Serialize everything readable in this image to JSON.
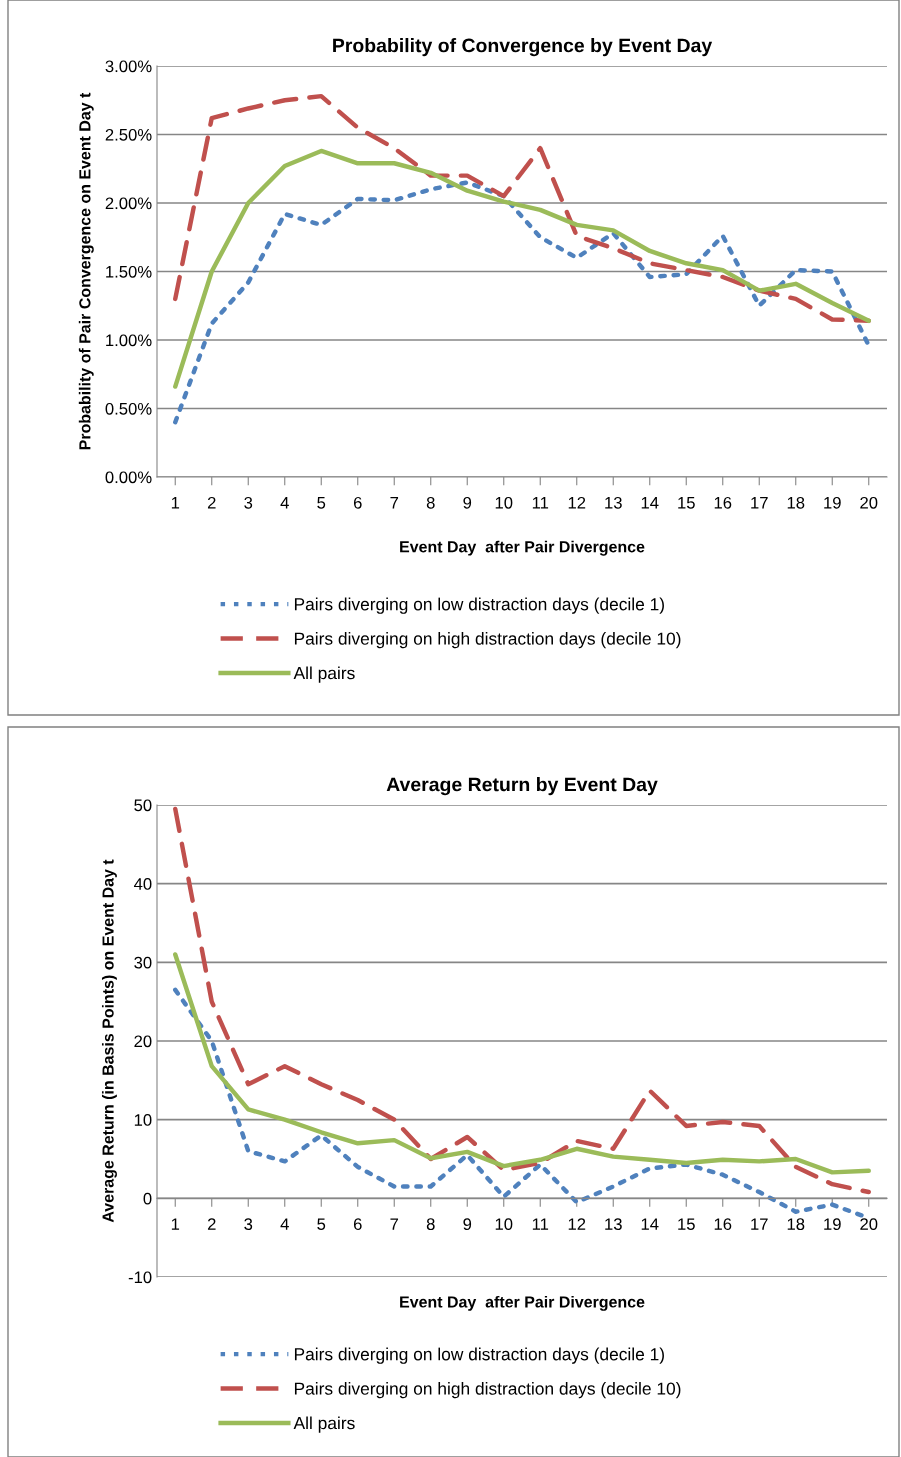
{
  "chart_data": [
    {
      "type": "line",
      "title": "Probability of Convergence by Event Day",
      "xlabel": "Event Day  after Pair Divergence",
      "ylabel": "Probability of Pair Convergence on Event Day t",
      "categories": [
        "1",
        "2",
        "3",
        "4",
        "5",
        "6",
        "7",
        "8",
        "9",
        "10",
        "11",
        "12",
        "13",
        "14",
        "15",
        "16",
        "17",
        "18",
        "19",
        "20"
      ],
      "ylim": [
        0,
        3
      ],
      "yticks": [
        {
          "value": 0,
          "label": "0.00%"
        },
        {
          "value": 0.5,
          "label": "0.50%"
        },
        {
          "value": 1,
          "label": "1.00%"
        },
        {
          "value": 1.5,
          "label": "1.50%"
        },
        {
          "value": 2,
          "label": "2.00%"
        },
        {
          "value": 2.5,
          "label": "2.50%"
        },
        {
          "value": 3,
          "label": "3.00%"
        }
      ],
      "grid": "y",
      "legend": "bottom",
      "series": [
        {
          "name": "Pairs diverging on low distraction days (decile 1)",
          "color": "#4f81bd",
          "line_style": "dotted",
          "values": [
            0.4,
            1.12,
            1.42,
            1.92,
            1.84,
            2.03,
            2.02,
            2.1,
            2.15,
            2.05,
            1.75,
            1.6,
            1.78,
            1.46,
            1.48,
            1.76,
            1.25,
            1.51,
            1.5,
            0.96
          ]
        },
        {
          "name": "Pairs diverging on high distraction days (decile 10)",
          "color": "#c0504d",
          "line_style": "dashed",
          "values": [
            1.3,
            2.62,
            2.69,
            2.75,
            2.78,
            2.55,
            2.4,
            2.2,
            2.2,
            2.05,
            2.4,
            1.76,
            1.67,
            1.56,
            1.51,
            1.46,
            1.36,
            1.3,
            1.15,
            1.14
          ]
        },
        {
          "name": "All pairs",
          "color": "#9bbb59",
          "line_style": "solid",
          "values": [
            0.66,
            1.5,
            2.0,
            2.27,
            2.38,
            2.29,
            2.29,
            2.22,
            2.09,
            2.01,
            1.95,
            1.84,
            1.8,
            1.65,
            1.56,
            1.51,
            1.36,
            1.41,
            1.27,
            1.14
          ]
        }
      ]
    },
    {
      "type": "line",
      "title": "Average Return by Event Day",
      "xlabel": "Event Day  after Pair Divergence",
      "ylabel": "Average Return (in Basis Points) on Event Day t",
      "categories": [
        "1",
        "2",
        "3",
        "4",
        "5",
        "6",
        "7",
        "8",
        "9",
        "10",
        "11",
        "12",
        "13",
        "14",
        "15",
        "16",
        "17",
        "18",
        "19",
        "20"
      ],
      "ylim": [
        -10,
        50
      ],
      "yticks": [
        -10,
        0,
        10,
        20,
        30,
        40,
        50
      ],
      "grid": "y",
      "legend": "bottom",
      "series": [
        {
          "name": "Pairs diverging on low distraction days (decile 1)",
          "color": "#4f81bd",
          "line_style": "dotted",
          "values": [
            26.5,
            20,
            6,
            4.7,
            8,
            4,
            1.5,
            1.5,
            5.5,
            0.2,
            4.3,
            -0.5,
            1.5,
            3.8,
            4.3,
            3,
            0.8,
            -1.7,
            -0.8,
            -2.5
          ]
        },
        {
          "name": "Pairs diverging on high distraction days (decile 10)",
          "color": "#c0504d",
          "line_style": "dashed",
          "values": [
            49.5,
            25,
            14.5,
            16.8,
            14.5,
            12.5,
            10,
            5,
            7.8,
            3.6,
            4.5,
            7.3,
            6.3,
            13.7,
            9.2,
            9.7,
            9.2,
            4,
            1.8,
            0.8
          ]
        },
        {
          "name": "All pairs",
          "color": "#9bbb59",
          "line_style": "solid",
          "values": [
            31,
            16.8,
            11.3,
            10,
            8.4,
            7,
            7.4,
            5.1,
            5.9,
            4.1,
            4.9,
            6.3,
            5.3,
            4.9,
            4.5,
            4.9,
            4.7,
            5,
            3.3,
            3.5
          ]
        }
      ]
    }
  ]
}
